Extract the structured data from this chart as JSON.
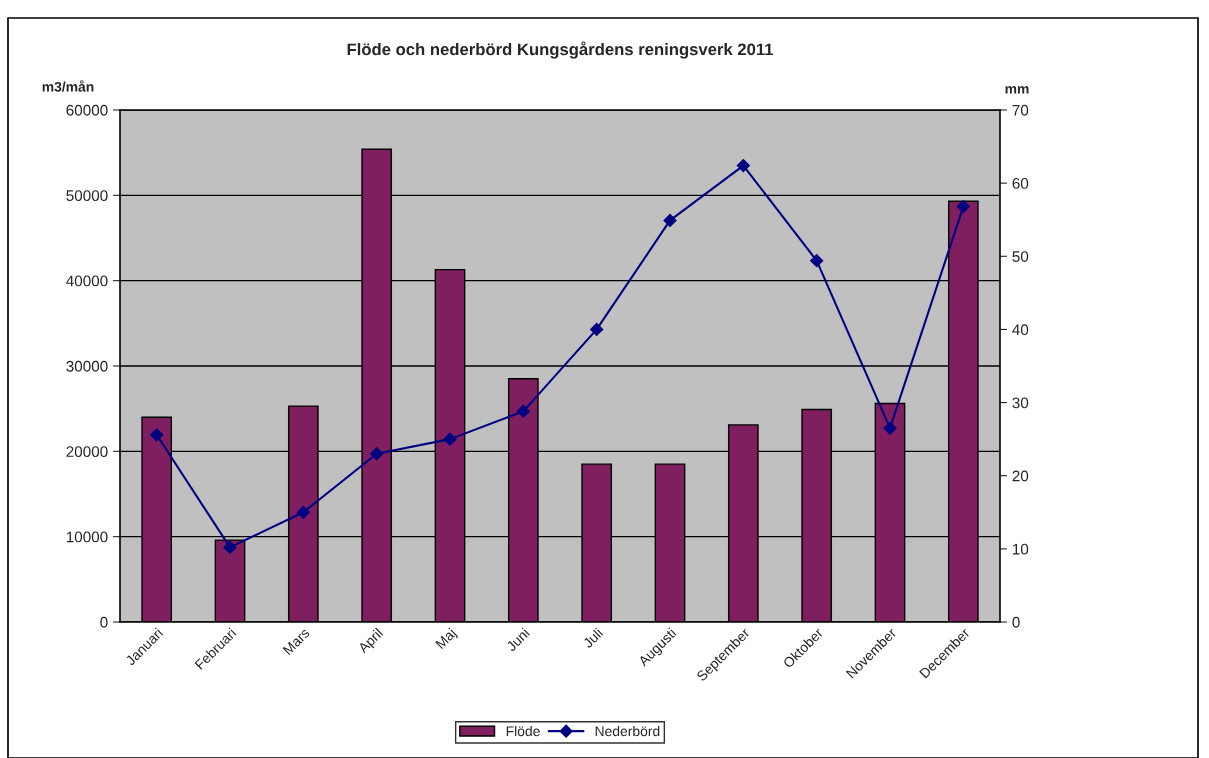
{
  "chart_data": {
    "type": "bar",
    "title": "Flöde och nederbörd Kungsgårdens reningsverk 2011",
    "ylabel": "m3/mån",
    "y2label": "mm",
    "categories": [
      "Januari",
      "Februari",
      "Mars",
      "April",
      "Maj",
      "Juni",
      "Juli",
      "Augusti",
      "September",
      "Oktober",
      "November",
      "December"
    ],
    "series": [
      {
        "name": "Flöde",
        "color": "#7f1f5f",
        "values": [
          24000,
          9600,
          25300,
          55400,
          41300,
          28500,
          18500,
          18500,
          23100,
          24900,
          25600,
          49300
        ]
      },
      {
        "name": "Nederbörd",
        "type": "line",
        "axis": "y2",
        "color": "#000080",
        "marker": "diamond",
        "line_style": "solid",
        "values": [
          25.6,
          10.2,
          15.0,
          23.0,
          25.0,
          28.8,
          40.0,
          54.9,
          62.4,
          49.4,
          26.5,
          56.8
        ]
      }
    ],
    "ylim": [
      0,
      60000
    ],
    "yticks": [
      0,
      10000,
      20000,
      30000,
      40000,
      50000,
      60000
    ],
    "y2lim": [
      0,
      70
    ],
    "y2ticks": [
      0,
      10,
      20,
      30,
      40,
      50,
      60,
      70
    ],
    "grid": "y",
    "legend": "bottom"
  }
}
